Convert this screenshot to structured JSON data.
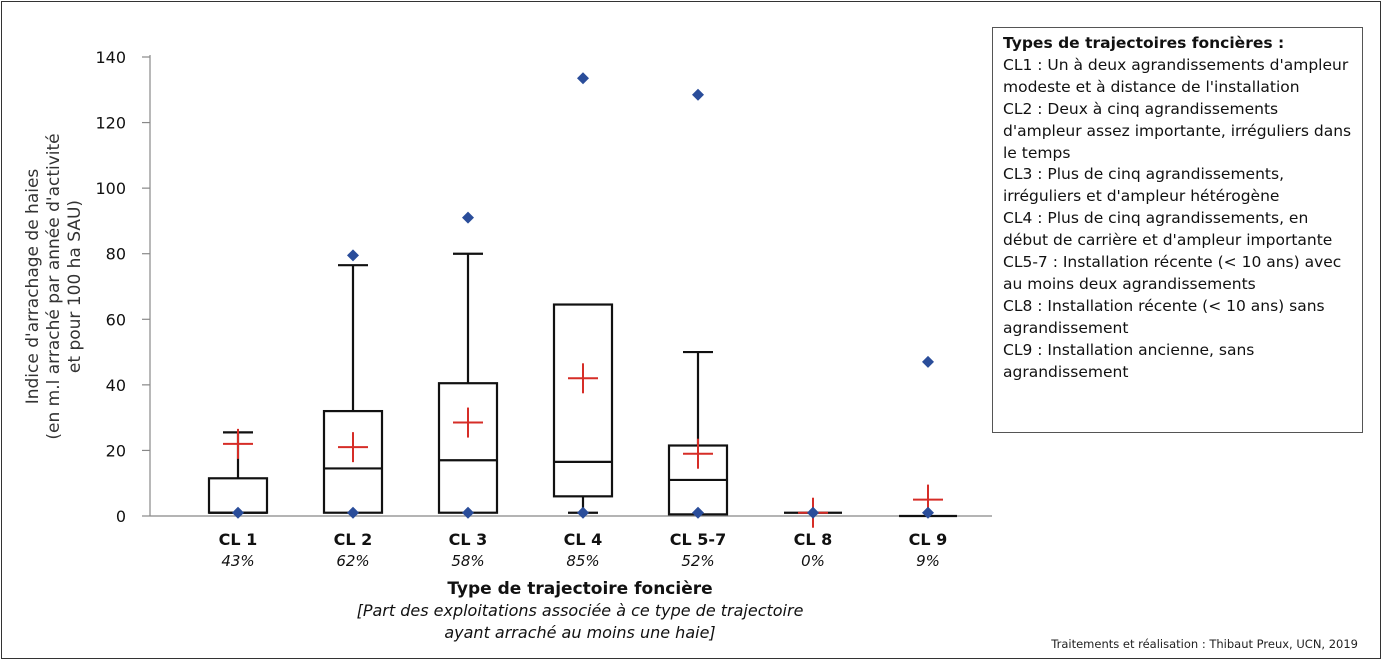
{
  "chart_data": {
    "type": "box",
    "ylabel_lines": [
      "Indice d'arrachage de haies",
      "(en m.l arraché par année d'activité",
      "et pour 100 ha SAU)"
    ],
    "xlabel": "Type de trajectoire foncière",
    "xlabel_note_lines": [
      "[Part des exploitations associée à ce type de trajectoire",
      "ayant arraché au moins une haie]"
    ],
    "ylim": [
      0,
      140
    ],
    "yticks": [
      "0",
      "20",
      "40",
      "60",
      "80",
      "100",
      "120",
      "140"
    ],
    "categories": [
      "CL 1",
      "CL 2",
      "CL 3",
      "CL 4",
      "CL 5-7",
      "CL 8",
      "CL 9"
    ],
    "percentages": [
      "43%",
      "62%",
      "58%",
      "85%",
      "52%",
      "0%",
      "9%"
    ],
    "boxes": [
      {
        "min": 1,
        "q1": 1,
        "median": 1,
        "q3": 11.5,
        "max": 25.5,
        "mean": 22,
        "outliers": [
          1
        ]
      },
      {
        "min": 1,
        "q1": 1,
        "median": 14.5,
        "q3": 32,
        "max": 76.5,
        "mean": 21,
        "outliers": [
          1,
          79.5
        ]
      },
      {
        "min": 1,
        "q1": 1,
        "median": 17,
        "q3": 40.5,
        "max": 80,
        "mean": 28.5,
        "outliers": [
          1,
          91
        ]
      },
      {
        "min": 1,
        "q1": 6,
        "median": 16.5,
        "q3": 64.5,
        "max": 64.5,
        "mean": 42,
        "outliers": [
          1,
          133.5
        ]
      },
      {
        "min": 0.5,
        "q1": 0.5,
        "median": 11,
        "q3": 21.5,
        "max": 50,
        "mean": 19,
        "outliers": [
          1,
          128.5
        ]
      },
      {
        "min": 1,
        "q1": 1,
        "median": 1,
        "q3": 1,
        "max": 1,
        "mean": 1,
        "outliers": [
          1
        ]
      },
      {
        "min": 0,
        "q1": 0,
        "median": 0,
        "q3": 0,
        "max": 0,
        "mean": 5,
        "outliers": [
          1,
          47
        ]
      }
    ],
    "colors": {
      "box": "#111111",
      "mean_marker": "#d62d27",
      "outlier": "#2a4d9a",
      "axis": "#888888"
    }
  },
  "legend": {
    "title": "Types de trajectoires foncières :",
    "items": [
      "CL1 : Un à deux agrandissements d'ampleur modeste et à distance de l'installation",
      "CL2 : Deux à cinq agrandissements d'ampleur assez importante, irréguliers dans le temps",
      "CL3 : Plus de cinq agrandissements, irréguliers et d'ampleur hétérogène",
      "CL4 : Plus de cinq agrandissements, en début de carrière et d'ampleur importante",
      "CL5-7 : Installation récente (< 10 ans) avec au moins deux agrandissements",
      "CL8 : Installation récente (< 10 ans) sans agrandissement",
      "CL9 : Installation ancienne, sans agrandissement"
    ]
  },
  "credit": "Traitements et réalisation : Thibaut Preux, UCN, 2019"
}
